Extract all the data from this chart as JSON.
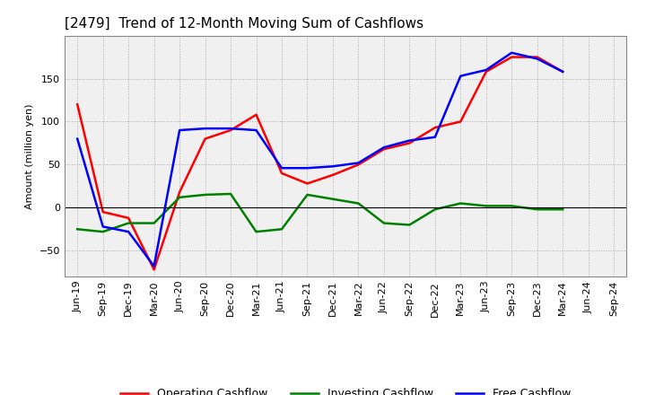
{
  "title": "[2479]  Trend of 12-Month Moving Sum of Cashflows",
  "ylabel": "Amount (million yen)",
  "x_labels": [
    "Jun-19",
    "Sep-19",
    "Dec-19",
    "Mar-20",
    "Jun-20",
    "Sep-20",
    "Dec-20",
    "Mar-21",
    "Jun-21",
    "Sep-21",
    "Dec-21",
    "Mar-22",
    "Jun-22",
    "Sep-22",
    "Dec-22",
    "Mar-23",
    "Jun-23",
    "Sep-23",
    "Dec-23",
    "Mar-24",
    "Jun-24",
    "Sep-24"
  ],
  "operating": [
    120,
    -5,
    -12,
    -72,
    18,
    80,
    90,
    108,
    40,
    28,
    38,
    50,
    68,
    75,
    93,
    100,
    158,
    175,
    175,
    158,
    null,
    null
  ],
  "investing": [
    -25,
    -28,
    -18,
    -18,
    12,
    15,
    16,
    -28,
    -25,
    15,
    10,
    5,
    -18,
    -20,
    -2,
    5,
    2,
    2,
    -2,
    -2,
    null,
    null
  ],
  "free": [
    80,
    -22,
    -28,
    -68,
    90,
    92,
    92,
    90,
    46,
    46,
    48,
    52,
    70,
    78,
    82,
    153,
    160,
    180,
    173,
    158,
    null,
    null
  ],
  "operating_color": "#ff0000",
  "investing_color": "#008000",
  "free_color": "#0000ff",
  "ylim": [
    -80,
    200
  ],
  "yticks": [
    -50,
    0,
    50,
    100,
    150
  ],
  "bg_color": "#ffffff",
  "plot_bg_color": "#f0f0f0",
  "grid_color": "#aaaaaa",
  "title_fontsize": 11,
  "legend_fontsize": 9,
  "axis_fontsize": 8
}
